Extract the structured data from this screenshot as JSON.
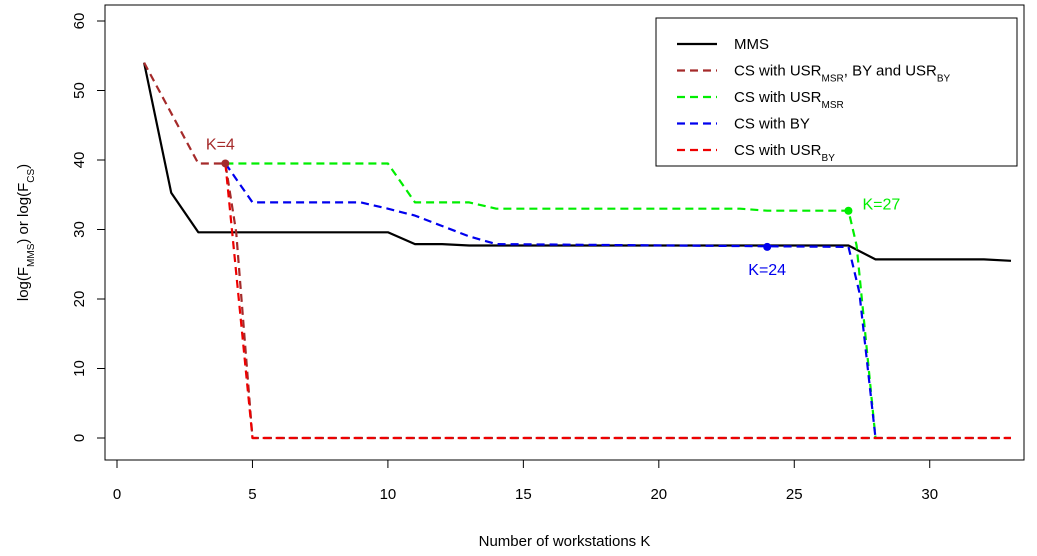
{
  "chart_data": {
    "type": "line",
    "xlabel": "Number of workstations K",
    "ylabel": {
      "parts": [
        {
          "t": "log(F"
        },
        {
          "t": "MMS",
          "sub": true
        },
        {
          "t": ") or log(F"
        },
        {
          "t": "CS",
          "sub": true
        },
        {
          "t": ")"
        }
      ]
    },
    "xlim": [
      0,
      33
    ],
    "ylim": [
      0,
      60
    ],
    "x_ticks": [
      0,
      5,
      10,
      15,
      20,
      25,
      30
    ],
    "y_ticks": [
      0,
      10,
      20,
      30,
      40,
      50,
      60
    ],
    "grid": false,
    "legend_position": "top-right",
    "series": [
      {
        "name": "MMS",
        "legend_parts": [
          {
            "t": "MMS"
          }
        ],
        "color": "#000000",
        "dash": "solid",
        "x": [
          1,
          2,
          3,
          4,
          10,
          11,
          12,
          13,
          27,
          28,
          32,
          33
        ],
        "y": [
          54,
          35.3,
          29.6,
          29.6,
          29.6,
          27.9,
          27.9,
          27.7,
          27.7,
          25.7,
          25.7,
          25.5
        ]
      },
      {
        "name": "CS with USR_MSR, BY and USR_BY",
        "legend_parts": [
          {
            "t": "CS with USR"
          },
          {
            "t": "MSR",
            "sub": true
          },
          {
            "t": ", BY and USR"
          },
          {
            "t": "BY",
            "sub": true
          }
        ],
        "color": "#a52a2a",
        "dash": "dashed",
        "x": [
          1,
          3,
          4,
          4.4,
          5,
          33
        ],
        "y": [
          54,
          39.5,
          39.5,
          29.6,
          0,
          0
        ]
      },
      {
        "name": "CS with USR_MSR",
        "legend_parts": [
          {
            "t": "CS with USR"
          },
          {
            "t": "MSR",
            "sub": true
          }
        ],
        "color": "#00ee00",
        "dash": "dashed",
        "x": [
          4,
          10,
          11,
          13,
          14,
          23,
          24,
          27,
          27.3,
          28
        ],
        "y": [
          39.5,
          39.5,
          33.9,
          33.9,
          33,
          33,
          32.7,
          32.7,
          27.7,
          0
        ]
      },
      {
        "name": "CS with BY",
        "legend_parts": [
          {
            "t": "CS with BY"
          }
        ],
        "color": "#0000ee",
        "dash": "dashed",
        "x": [
          4,
          5,
          9,
          10,
          11,
          12,
          13,
          14,
          27,
          27.4,
          28
        ],
        "y": [
          39.5,
          33.9,
          33.9,
          33,
          32,
          30.5,
          29,
          27.9,
          27.5,
          21,
          0
        ]
      },
      {
        "name": "CS with USR_BY",
        "legend_parts": [
          {
            "t": "CS with USR"
          },
          {
            "t": "BY",
            "sub": true
          }
        ],
        "color": "#ee0000",
        "dash": "dashed",
        "x": [
          4,
          5,
          33
        ],
        "y": [
          39.5,
          0,
          0
        ]
      }
    ],
    "annotations": [
      {
        "text": "K=4",
        "x": 4,
        "y": 39.5,
        "color": "#a52a2a",
        "placement": "above-left"
      },
      {
        "text": "K=24",
        "x": 24,
        "y": 27.5,
        "color": "#0000ee",
        "placement": "below"
      },
      {
        "text": "K=27",
        "x": 27,
        "y": 32.7,
        "color": "#00ee00",
        "placement": "right"
      }
    ]
  }
}
